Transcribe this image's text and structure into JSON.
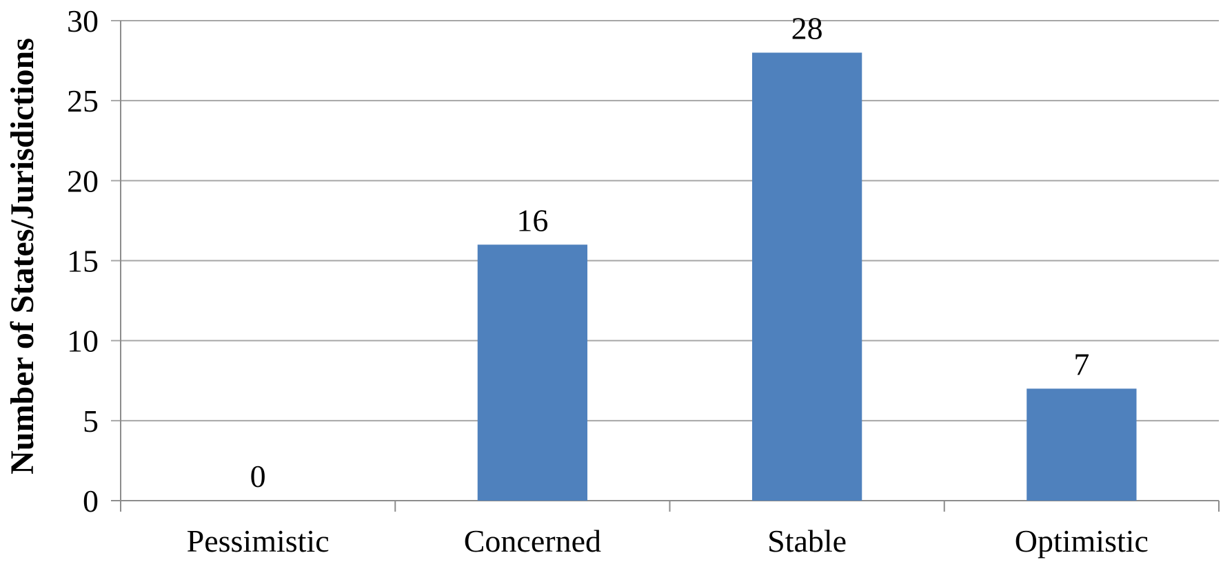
{
  "chart_data": {
    "type": "bar",
    "title": "",
    "xlabel": "",
    "ylabel": "Number of States/Jurisdictions",
    "categories": [
      "Pessimistic",
      "Concerned",
      "Stable",
      "Optimistic"
    ],
    "values": [
      0,
      16,
      28,
      7
    ],
    "data_labels": [
      "0",
      "16",
      "28",
      "7"
    ],
    "ylim": [
      0,
      30
    ],
    "yticks": [
      0,
      5,
      10,
      15,
      20,
      25,
      30
    ],
    "ytick_labels": [
      "0",
      "5",
      "10",
      "15",
      "20",
      "25",
      "30"
    ],
    "grid": true,
    "legend": "none",
    "colors": {
      "bar": "#4F81BD",
      "gridline": "#A6A6A6",
      "axis": "#8C8C8C",
      "text": "#000000"
    }
  }
}
